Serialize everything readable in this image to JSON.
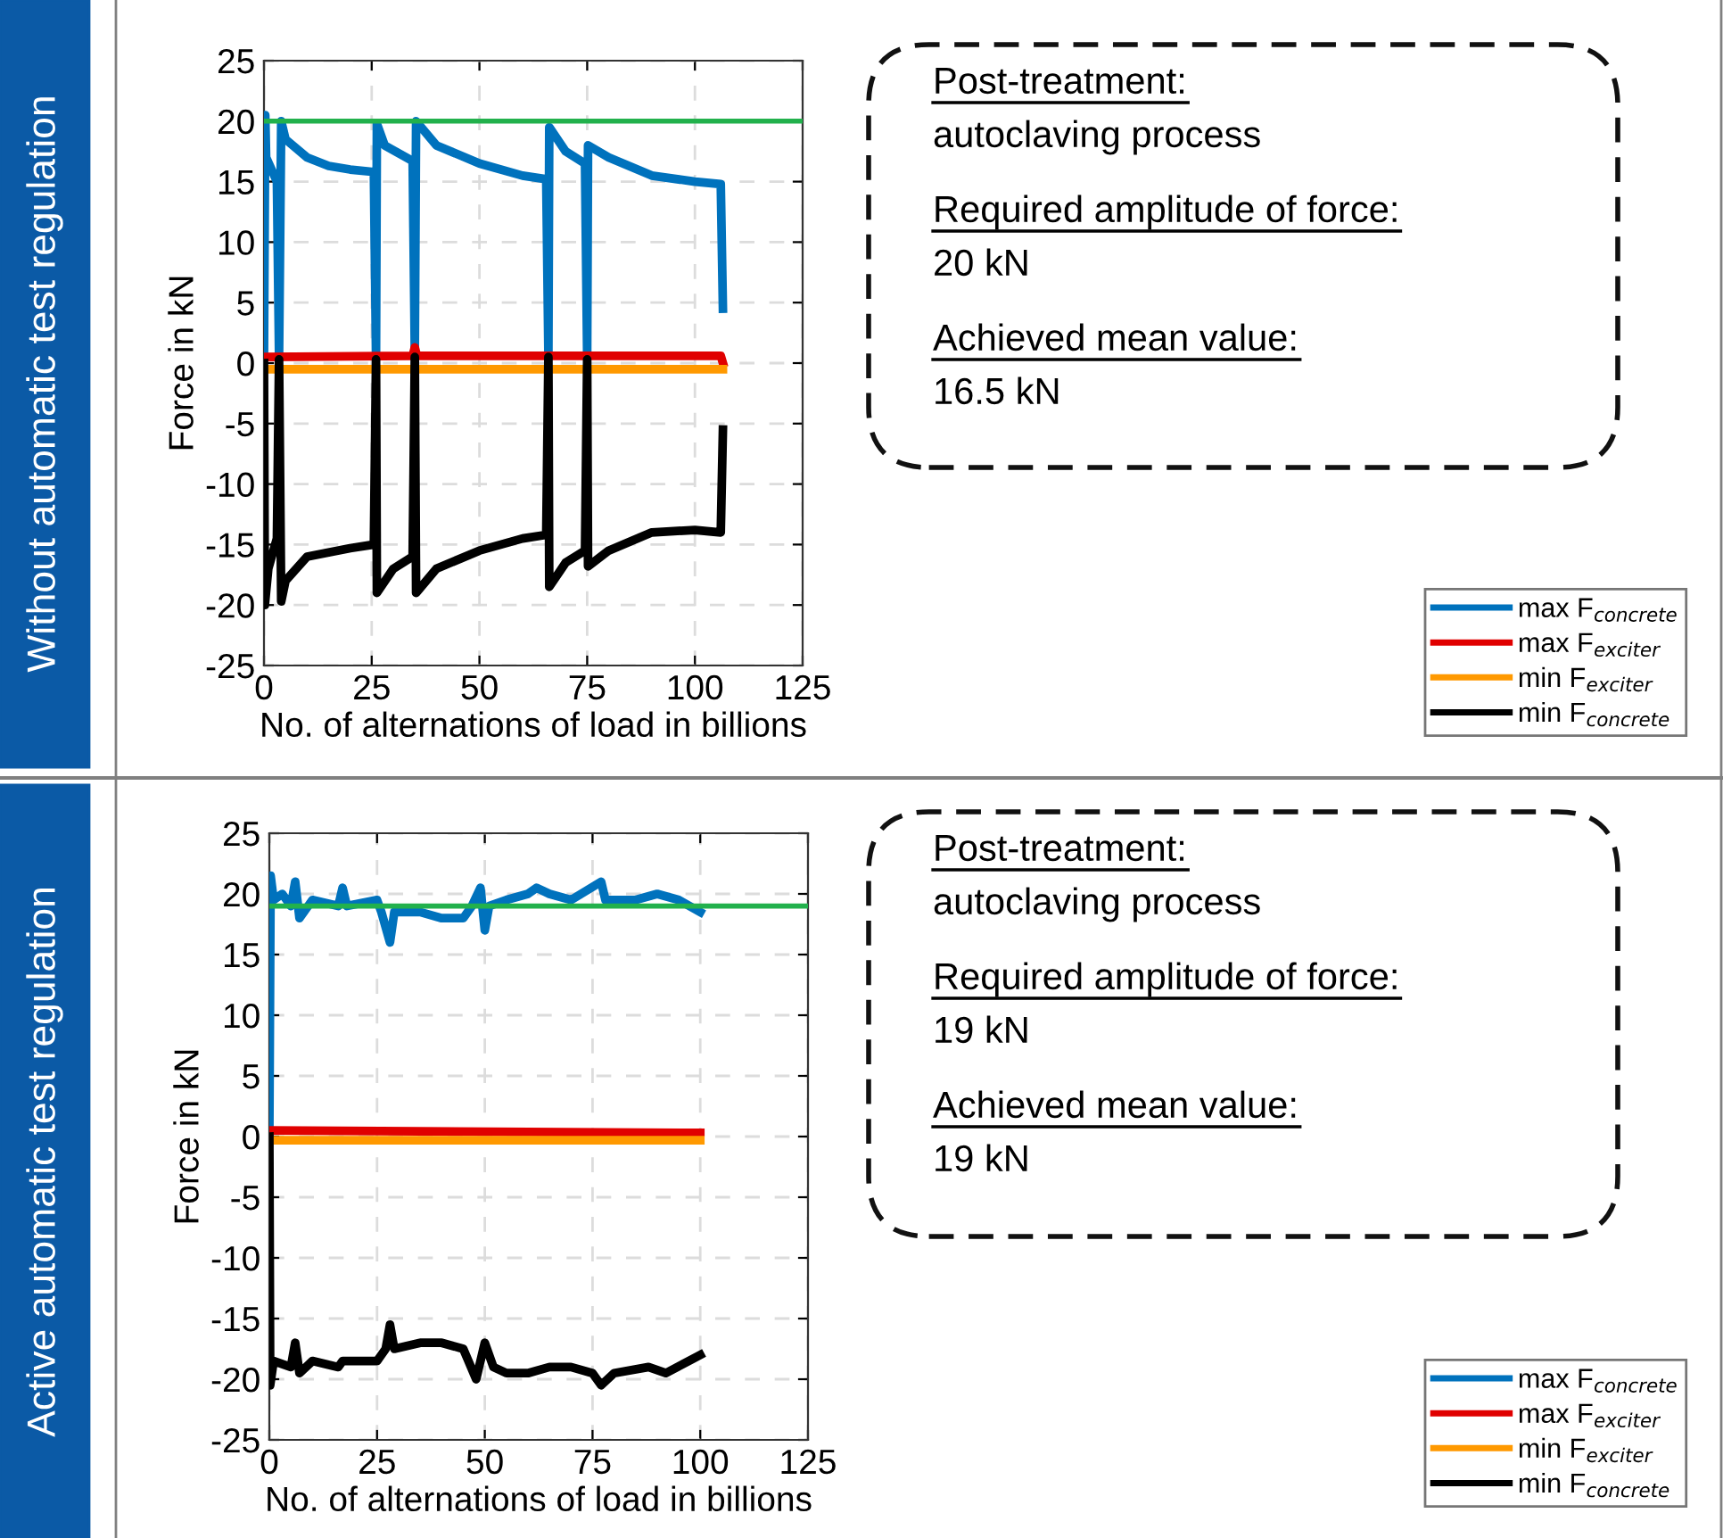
{
  "chart_data": [
    {
      "type": "line",
      "title": "Without automatic test regulation",
      "xlabel": "No. of alternations of load in billions",
      "ylabel": "Force in kN",
      "xlim": [
        0,
        125
      ],
      "xticks": [
        0,
        25,
        50,
        75,
        100,
        125
      ],
      "ylim": [
        -25,
        25
      ],
      "yticks": [
        -25,
        -20,
        -15,
        -10,
        -5,
        0,
        5,
        10,
        15,
        20,
        25
      ],
      "grid": true,
      "legend": "bottom right",
      "line_style": "solid",
      "series": [
        {
          "name": "max F$_{concrete}$",
          "color": "#0072bd",
          "x": [
            0,
            0.3,
            0.5,
            3,
            3.5,
            4,
            5,
            10,
            15,
            20,
            25.5,
            26,
            26.2,
            28,
            34.5,
            35,
            35.3,
            40,
            50,
            60,
            65.5,
            66,
            66.2,
            70,
            74.5,
            75,
            75.2,
            80,
            90,
            100,
            106,
            106.5
          ],
          "values": [
            0.5,
            20.5,
            17,
            15,
            0.5,
            20,
            18.5,
            17,
            16.3,
            16,
            15.8,
            0.5,
            19.8,
            18,
            16.7,
            1,
            20,
            18,
            16.5,
            15.5,
            15.2,
            0.8,
            19.5,
            17.5,
            16.5,
            0.5,
            18,
            17,
            15.5,
            15,
            14.8,
            4.5
          ]
        },
        {
          "name": "max F$_{exciter}$",
          "color": "#e00000",
          "x": [
            0,
            34.5,
            35,
            35.5,
            106,
            106.5
          ],
          "values": [
            0.5,
            0.6,
            1.3,
            0.6,
            0.6,
            0
          ]
        },
        {
          "name": "min F$_{exciter}$",
          "color": "#ff9900",
          "x": [
            0,
            106.5
          ],
          "values": [
            -0.5,
            -0.5
          ]
        },
        {
          "name": "min F$_{concrete}$",
          "color": "#000000",
          "x": [
            0,
            0.2,
            1,
            3,
            3.5,
            4,
            5,
            10,
            20,
            25.5,
            26,
            26.2,
            30,
            34.5,
            35,
            35.3,
            40,
            50,
            60,
            65.5,
            66,
            66.2,
            70,
            74.5,
            75,
            75.2,
            80,
            90,
            100,
            106,
            106.5
          ],
          "values": [
            0,
            -20,
            -17,
            -14.5,
            0.3,
            -19.7,
            -18,
            -16,
            -15.3,
            -15,
            0.3,
            -19,
            -17,
            -16,
            0.5,
            -19,
            -17,
            -15.5,
            -14.5,
            -14.2,
            0.5,
            -18.5,
            -16.5,
            -15.5,
            0.3,
            -16.8,
            -15.5,
            -14,
            -13.8,
            -14,
            -5.5
          ]
        }
      ],
      "ref_lines": [
        {
          "axis": "y",
          "value": 20,
          "color": "#22b14c"
        }
      ],
      "annotations": [
        "Post-treatment:",
        "autoclaving process",
        "Required amplitude of force:",
        "20 kN",
        "Achieved mean value:",
        "16.5 kN"
      ]
    },
    {
      "type": "line",
      "title": "Active automatic test regulation",
      "xlabel": "No. of alternations of load in billions",
      "ylabel": "Force in kN",
      "xlim": [
        0,
        125
      ],
      "xticks": [
        0,
        25,
        50,
        75,
        100,
        125
      ],
      "ylim": [
        -25,
        25
      ],
      "yticks": [
        -25,
        -20,
        -15,
        -10,
        -5,
        0,
        5,
        10,
        15,
        20,
        25
      ],
      "grid": true,
      "legend": "bottom right",
      "line_style": "solid",
      "series": [
        {
          "name": "max F$_{concrete}$",
          "color": "#0072bd",
          "x": [
            0,
            0.3,
            1,
            3,
            5,
            6,
            7,
            10,
            16,
            17,
            18,
            25,
            26,
            28,
            29,
            35,
            40,
            45,
            47,
            49,
            50,
            51,
            55,
            60,
            62,
            65,
            70,
            77,
            78,
            85,
            90,
            95,
            100
          ],
          "values": [
            0,
            21.5,
            19.5,
            20,
            19,
            21,
            18,
            19.5,
            19,
            20.5,
            19,
            19.5,
            18.5,
            16,
            18.5,
            18.5,
            18,
            18,
            19,
            20.5,
            17,
            19,
            19.5,
            20,
            20.5,
            20,
            19.5,
            21,
            19.5,
            19.5,
            20,
            19.5,
            18.5
          ]
        },
        {
          "name": "max F$_{exciter}$",
          "color": "#e00000",
          "x": [
            0,
            100
          ],
          "values": [
            0.5,
            0.3
          ]
        },
        {
          "name": "min F$_{exciter}$",
          "color": "#ff9900",
          "x": [
            0,
            100
          ],
          "values": [
            -0.3,
            -0.3
          ]
        },
        {
          "name": "min F$_{concrete}$",
          "color": "#000000",
          "x": [
            0,
            0.2,
            1,
            5,
            6,
            7,
            10,
            16,
            17,
            25,
            27,
            28,
            29,
            35,
            40,
            45,
            48,
            50,
            52,
            55,
            60,
            65,
            70,
            75,
            77,
            80,
            88,
            92,
            100
          ],
          "values": [
            0,
            -20.5,
            -18.5,
            -19,
            -17,
            -19.5,
            -18.5,
            -19,
            -18.5,
            -18.5,
            -17.5,
            -15.5,
            -17.5,
            -17,
            -17,
            -17.5,
            -20,
            -17,
            -19,
            -19.5,
            -19.5,
            -19,
            -19,
            -19.5,
            -20.5,
            -19.5,
            -19,
            -19.5,
            -18
          ]
        }
      ],
      "ref_lines": [
        {
          "axis": "y",
          "value": 19,
          "color": "#22b14c"
        }
      ],
      "annotations": [
        "Post-treatment:",
        "autoclaving process",
        "Required amplitude of force:",
        "19 kN",
        "Achieved mean value:",
        "19 kN"
      ]
    }
  ]
}
